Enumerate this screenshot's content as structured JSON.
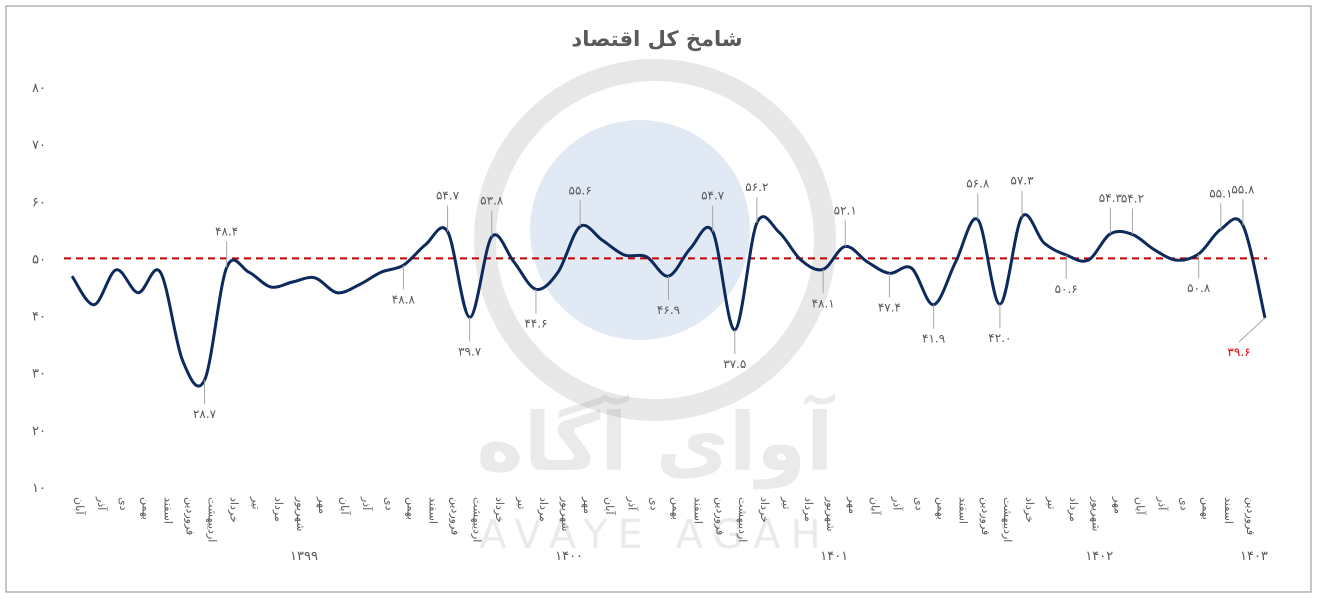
{
  "chart_data": {
    "type": "line",
    "title": "شامخ کل اقتصاد",
    "categories": [
      "آبان",
      "آذر",
      "دی",
      "بهمن",
      "اسفند",
      "فروردین",
      "اردیبهشت",
      "خرداد",
      "تیر",
      "مرداد",
      "شهریور",
      "مهر",
      "آبان",
      "آذر",
      "دی",
      "بهمن",
      "اسفند",
      "فروردین",
      "اردیبهشت",
      "خرداد",
      "تیر",
      "مرداد",
      "شهریور",
      "مهر",
      "آبان",
      "آذر",
      "دی",
      "بهمن",
      "اسفند",
      "فروردین",
      "اردیبهشت",
      "خرداد",
      "تیر",
      "مرداد",
      "شهریور",
      "مهر",
      "آبان",
      "آذر",
      "دی",
      "بهمن",
      "اسفند",
      "فروردین",
      "اردیبهشت",
      "خرداد",
      "تیر",
      "مرداد",
      "شهریور",
      "مهر",
      "آبان",
      "آذر",
      "دی",
      "بهمن",
      "اسفند",
      "فروردین",
      null
    ],
    "groups": [
      {
        "label": "۱۳۹۹",
        "first": 5,
        "last": 16
      },
      {
        "label": "۱۴۰۰",
        "first": 17,
        "last": 28
      },
      {
        "label": "۱۴۰۱",
        "first": 29,
        "last": 40
      },
      {
        "label": "۱۴۰۲",
        "first": 41,
        "last": 52
      },
      {
        "label": "۱۴۰۳",
        "first": 53,
        "last": 54
      }
    ],
    "series": [
      {
        "color": "#0d2a5c",
        "values": [
          46.9,
          41.9,
          48.0,
          44.0,
          47.6,
          32.2,
          28.7,
          48.4,
          47.6,
          45.0,
          45.9,
          46.6,
          44.0,
          45.4,
          47.6,
          48.8,
          52.4,
          54.7,
          39.7,
          53.8,
          49.4,
          44.6,
          47.6,
          55.6,
          53.2,
          50.6,
          50.3,
          46.9,
          51.8,
          54.7,
          37.5,
          56.2,
          54.6,
          49.7,
          48.1,
          52.1,
          49.4,
          47.4,
          48.3,
          41.9,
          49.4,
          56.8,
          42.0,
          57.3,
          52.7,
          50.6,
          49.7,
          54.3,
          54.2,
          51.5,
          49.7,
          50.8,
          55.1,
          55.8,
          39.6
        ],
        "value_labels": [
          null,
          null,
          null,
          null,
          null,
          null,
          "۲۸.۷",
          "۴۸.۴",
          null,
          null,
          null,
          null,
          null,
          null,
          null,
          "۴۸.۸",
          null,
          "۵۴.۷",
          "۳۹.۷",
          "۵۳.۸",
          null,
          "۴۴.۶",
          null,
          "۵۵.۶",
          null,
          null,
          null,
          "۴۶.۹",
          null,
          "۵۴.۷",
          "۳۷.۵",
          "۵۶.۲",
          null,
          null,
          "۴۸.۱",
          "۵۲.۱",
          null,
          "۴۷.۴",
          null,
          "۴۱.۹",
          null,
          "۵۶.۸",
          "۴۲.۰",
          "۵۷.۳",
          null,
          "۵۰.۶",
          null,
          "۵۴.۳",
          "۵۴.۲",
          null,
          null,
          "۵۰.۸",
          "۵۵.۱",
          "۵۵.۸",
          "۳۹.۶"
        ],
        "last_label_color": "#e00000"
      }
    ],
    "ylim": [
      10,
      80
    ],
    "yticks": [
      {
        "value": 10,
        "label": "۱۰"
      },
      {
        "value": 20,
        "label": "۲۰"
      },
      {
        "value": 30,
        "label": "۳۰"
      },
      {
        "value": 40,
        "label": "۴۰"
      },
      {
        "value": 50,
        "label": "۵۰"
      },
      {
        "value": 60,
        "label": "۶۰"
      },
      {
        "value": 70,
        "label": "۷۰"
      },
      {
        "value": 80,
        "label": "۸۰"
      }
    ],
    "reference_line": {
      "value": 50,
      "color": "#c00000"
    },
    "grid": false,
    "watermark": [
      "آوای آگاه",
      "AVAYE AGAH"
    ]
  }
}
